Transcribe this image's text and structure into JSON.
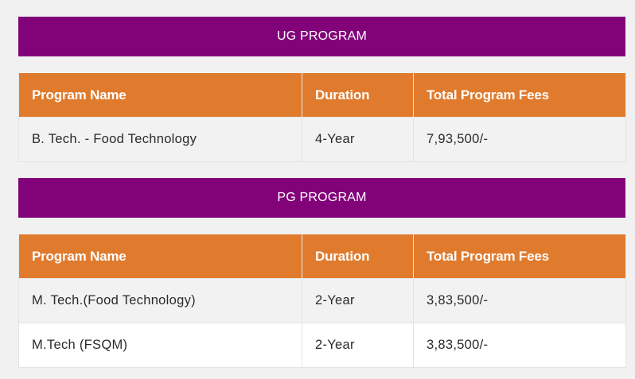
{
  "ug": {
    "title": "UG PROGRAM",
    "headers": [
      "Program Name",
      "Duration",
      "Total Program Fees"
    ],
    "rows": [
      [
        "B. Tech. - Food Technology",
        "4-Year",
        "7,93,500/-"
      ]
    ]
  },
  "pg": {
    "title": "PG PROGRAM",
    "headers": [
      "Program Name",
      "Duration",
      "Total Program Fees"
    ],
    "rows": [
      [
        "M. Tech.(Food Technology)",
        "2-Year",
        "3,83,500/-"
      ],
      [
        "M.Tech (FSQM)",
        "2-Year",
        "3,83,500/-"
      ]
    ]
  },
  "colors": {
    "banner": "#82027a",
    "header": "#e07b2e",
    "background": "#f1f1f1"
  }
}
